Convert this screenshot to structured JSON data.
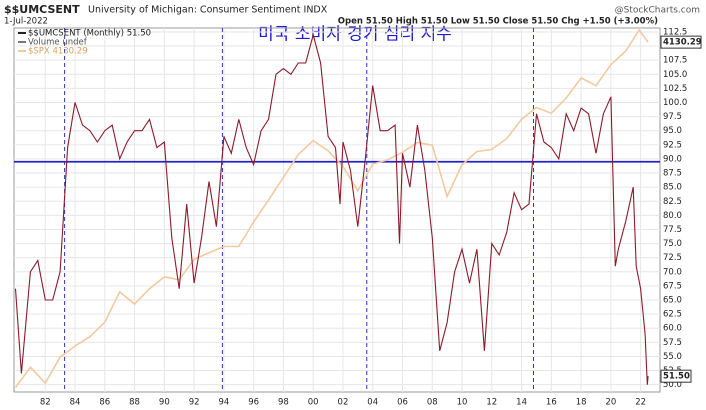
{
  "chart_data": {
    "type": "line",
    "title": "$$UMCSENT",
    "subtitle": "University of Michigan: Consumer Sentiment INDX",
    "date": "1-Jul-2022",
    "source": "@StockCharts.com",
    "quote": "Open 51.50 High 51.50 Low 51.50 Close 51.50 Chg +1.50 (+3.00%)",
    "annotation": "미국 소비자 경기 심리 지수",
    "legend": [
      "$$UMCSENT (Monthly) 51.50",
      "Volume undef",
      "$SPX 4130.29"
    ],
    "series": [
      {
        "name": "$$UMCSENT",
        "color": "#8b1a2b",
        "last_label": "51.50",
        "x": [
          1980.0,
          1980.4,
          1981.0,
          1981.5,
          1982.0,
          1982.5,
          1983.0,
          1983.5,
          1984.0,
          1984.5,
          1985.0,
          1985.5,
          1986.0,
          1986.5,
          1987.0,
          1987.5,
          1988.0,
          1988.5,
          1989.0,
          1989.5,
          1990.0,
          1990.5,
          1991.0,
          1991.5,
          1992.0,
          1992.5,
          1993.0,
          1993.5,
          1994.0,
          1994.5,
          1995.0,
          1995.5,
          1996.0,
          1996.5,
          1997.0,
          1997.5,
          1998.0,
          1998.5,
          1999.0,
          1999.5,
          2000.0,
          2000.5,
          2001.0,
          2001.5,
          2001.8,
          2002.0,
          2002.5,
          2003.0,
          2003.5,
          2004.0,
          2004.5,
          2005.0,
          2005.5,
          2005.8,
          2006.0,
          2006.5,
          2007.0,
          2007.5,
          2008.0,
          2008.5,
          2009.0,
          2009.5,
          2010.0,
          2010.5,
          2011.0,
          2011.5,
          2012.0,
          2012.5,
          2013.0,
          2013.5,
          2014.0,
          2014.5,
          2015.0,
          2015.5,
          2016.0,
          2016.5,
          2017.0,
          2017.5,
          2018.0,
          2018.5,
          2019.0,
          2019.5,
          2020.0,
          2020.3,
          2020.5,
          2021.0,
          2021.5,
          2021.7,
          2022.0,
          2022.3,
          2022.45,
          2022.5
        ],
        "values": [
          67,
          52,
          70,
          72,
          65,
          65,
          70,
          92,
          100,
          96,
          95,
          93,
          95,
          96,
          90,
          93,
          95,
          95,
          97,
          92,
          93,
          76,
          67,
          82,
          68,
          76,
          86,
          78,
          94,
          91,
          97,
          92,
          89,
          95,
          97,
          105,
          106,
          105,
          107,
          107,
          112,
          107,
          94,
          92,
          82,
          93,
          88,
          78,
          90,
          103,
          95,
          95,
          96,
          75,
          91,
          85,
          96,
          88,
          76,
          56,
          61,
          70,
          74,
          68,
          74,
          56,
          75,
          73,
          77,
          84,
          81,
          82,
          98,
          93,
          92,
          90,
          98,
          95,
          99,
          98,
          91,
          98,
          101,
          71,
          74,
          79,
          85,
          71,
          67,
          59,
          50,
          51.5
        ]
      },
      {
        "name": "$SPX",
        "color": "#f3c9a0",
        "axis": "y2",
        "last_label": "4130.29",
        "x": [
          1980,
          1981,
          1982,
          1983,
          1984,
          1985,
          1986,
          1987,
          1988,
          1989,
          1990,
          1991,
          1992,
          1993,
          1994,
          1995,
          1996,
          1997,
          1998,
          1999,
          2000,
          2001,
          2002,
          2003,
          2004,
          2005,
          2006,
          2007,
          2008,
          2009,
          2010,
          2011,
          2012,
          2013,
          2014,
          2015,
          2016,
          2017,
          2018,
          2019,
          2020,
          2021,
          2021.9,
          2022.5
        ],
        "values": [
          105,
          130,
          110,
          145,
          163,
          180,
          210,
          290,
          255,
          300,
          340,
          330,
          410,
          440,
          470,
          470,
          610,
          770,
          980,
          1250,
          1450,
          1300,
          1100,
          850,
          1130,
          1180,
          1280,
          1420,
          1380,
          800,
          1120,
          1290,
          1320,
          1480,
          1820,
          2060,
          1940,
          2280,
          2820,
          2600,
          3250,
          3760,
          4700,
          4130.29
        ]
      }
    ],
    "xlim": [
      1979.9,
      2023.3
    ],
    "xticks": [
      {
        "value": 1982,
        "label": "82"
      },
      {
        "value": 1984,
        "label": "84"
      },
      {
        "value": 1986,
        "label": "86"
      },
      {
        "value": 1988,
        "label": "88"
      },
      {
        "value": 1990,
        "label": "90"
      },
      {
        "value": 1992,
        "label": "92"
      },
      {
        "value": 1994,
        "label": "94"
      },
      {
        "value": 1996,
        "label": "96"
      },
      {
        "value": 1998,
        "label": "98"
      },
      {
        "value": 2000,
        "label": "00"
      },
      {
        "value": 2002,
        "label": "02"
      },
      {
        "value": 2004,
        "label": "04"
      },
      {
        "value": 2006,
        "label": "06"
      },
      {
        "value": 2008,
        "label": "08"
      },
      {
        "value": 2010,
        "label": "10"
      },
      {
        "value": 2012,
        "label": "12"
      },
      {
        "value": 2014,
        "label": "14"
      },
      {
        "value": 2016,
        "label": "16"
      },
      {
        "value": 2018,
        "label": "18"
      },
      {
        "value": 2020,
        "label": "20"
      },
      {
        "value": 2022,
        "label": "22"
      }
    ],
    "ylim": [
      48.7,
      113.2
    ],
    "yticks": [
      {
        "value": 50,
        "label": "50.0"
      },
      52.5,
      {
        "value": 55,
        "label": "55.0"
      },
      57.5,
      {
        "value": 60,
        "label": "60.0"
      },
      62.5,
      {
        "value": 65,
        "label": "65.0"
      },
      67.5,
      {
        "value": 70,
        "label": "70.0"
      },
      72.5,
      {
        "value": 75,
        "label": "75.0"
      },
      77.5,
      {
        "value": 80,
        "label": "80.0"
      },
      82.5,
      {
        "value": 85,
        "label": "85.0"
      },
      87.5,
      {
        "value": 90,
        "label": "90.0"
      },
      92.5,
      {
        "value": 95,
        "label": "95.0"
      },
      97.5,
      {
        "value": 100,
        "label": "100.0"
      },
      102.5,
      {
        "value": 105,
        "label": "105.0"
      },
      107.5,
      {
        "value": 110,
        "label": "110.0"
      },
      112.5
    ],
    "y2lim": [
      100,
      4800
    ],
    "y2log": true,
    "grid": true,
    "reference_lines": {
      "y": 89.5,
      "y_color": "#2020d0",
      "x": [
        1983.3,
        1993.9,
        2003.6,
        2014.8
      ],
      "x_color": "#3030c0"
    }
  }
}
